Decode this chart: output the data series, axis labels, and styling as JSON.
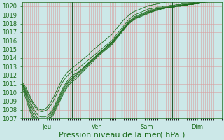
{
  "title": "",
  "xlabel": "Pression niveau de la mer( hPa )",
  "ylabel": "",
  "ylim": [
    1007,
    1020.5
  ],
  "xlim": [
    0,
    96
  ],
  "yticks": [
    1007,
    1008,
    1009,
    1010,
    1011,
    1012,
    1013,
    1014,
    1015,
    1016,
    1017,
    1018,
    1019,
    1020
  ],
  "xtick_positions": [
    12,
    36,
    60,
    84
  ],
  "xtick_labels": [
    "Jeu",
    "Ven",
    "Sam",
    "Dim"
  ],
  "vline_positions": [
    24,
    48,
    72
  ],
  "bg_color": "#cce8e8",
  "grid_color": "#d8a0a0",
  "line_color": "#1a6b1a",
  "vline_color": "#2d5a2d",
  "xlabel_fontsize": 8,
  "tick_fontsize": 6,
  "n_points": 97,
  "series": [
    [
      1011.0,
      1010.7,
      1010.3,
      1009.8,
      1009.3,
      1008.8,
      1008.4,
      1008.1,
      1007.9,
      1007.8,
      1007.8,
      1007.9,
      1008.0,
      1008.3,
      1008.6,
      1009.0,
      1009.5,
      1010.0,
      1010.5,
      1011.0,
      1011.4,
      1011.7,
      1012.0,
      1012.2,
      1012.4,
      1012.5,
      1012.6,
      1012.8,
      1013.0,
      1013.2,
      1013.4,
      1013.6,
      1013.8,
      1014.0,
      1014.2,
      1014.4,
      1014.6,
      1014.8,
      1015.0,
      1015.2,
      1015.4,
      1015.6,
      1015.8,
      1016.0,
      1016.3,
      1016.6,
      1016.9,
      1017.2,
      1017.5,
      1017.8,
      1018.1,
      1018.4,
      1018.6,
      1018.8,
      1019.0,
      1019.1,
      1019.2,
      1019.3,
      1019.4,
      1019.5,
      1019.6,
      1019.7,
      1019.7,
      1019.8,
      1019.8,
      1019.9,
      1019.9,
      1019.9,
      1020.0,
      1020.0,
      1020.0,
      1020.1,
      1020.1,
      1020.1,
      1020.2,
      1020.2,
      1020.2,
      1020.3,
      1020.3,
      1020.3,
      1020.4,
      1020.4,
      1020.4,
      1020.5,
      1020.5,
      1020.6,
      1020.6,
      1020.7,
      1020.7,
      1020.8,
      1020.8,
      1020.9,
      1020.9,
      1021.0,
      1021.0,
      1021.0,
      1021.1
    ],
    [
      1011.0,
      1010.6,
      1010.1,
      1009.5,
      1009.0,
      1008.4,
      1007.9,
      1007.6,
      1007.3,
      1007.2,
      1007.2,
      1007.2,
      1007.3,
      1007.5,
      1007.8,
      1008.2,
      1008.7,
      1009.2,
      1009.7,
      1010.2,
      1010.7,
      1011.1,
      1011.4,
      1011.7,
      1011.9,
      1012.1,
      1012.2,
      1012.4,
      1012.6,
      1012.8,
      1013.0,
      1013.2,
      1013.5,
      1013.7,
      1013.9,
      1014.1,
      1014.4,
      1014.6,
      1014.8,
      1015.0,
      1015.2,
      1015.4,
      1015.6,
      1015.8,
      1016.1,
      1016.4,
      1016.7,
      1017.0,
      1017.3,
      1017.6,
      1017.9,
      1018.2,
      1018.4,
      1018.6,
      1018.8,
      1018.9,
      1019.0,
      1019.1,
      1019.2,
      1019.3,
      1019.4,
      1019.5,
      1019.6,
      1019.6,
      1019.7,
      1019.7,
      1019.8,
      1019.8,
      1019.9,
      1019.9,
      1019.9,
      1020.0,
      1020.0,
      1020.0,
      1020.1,
      1020.1,
      1020.1,
      1020.2,
      1020.2,
      1020.2,
      1020.3,
      1020.3,
      1020.3,
      1020.4,
      1020.4,
      1020.5,
      1020.5,
      1020.6,
      1020.6,
      1020.7,
      1020.7,
      1020.8,
      1020.8,
      1020.9,
      1020.9,
      1021.0,
      1021.0
    ],
    [
      1011.0,
      1010.5,
      1009.9,
      1009.3,
      1008.7,
      1008.1,
      1007.6,
      1007.2,
      1007.0,
      1006.9,
      1006.9,
      1007.0,
      1007.1,
      1007.3,
      1007.6,
      1008.0,
      1008.5,
      1009.0,
      1009.5,
      1010.0,
      1010.5,
      1010.9,
      1011.2,
      1011.5,
      1011.7,
      1011.9,
      1012.1,
      1012.3,
      1012.5,
      1012.7,
      1013.0,
      1013.2,
      1013.4,
      1013.6,
      1013.9,
      1014.1,
      1014.3,
      1014.5,
      1014.7,
      1014.9,
      1015.2,
      1015.4,
      1015.6,
      1015.8,
      1016.0,
      1016.3,
      1016.6,
      1016.9,
      1017.2,
      1017.5,
      1017.8,
      1018.1,
      1018.3,
      1018.5,
      1018.7,
      1018.8,
      1018.9,
      1019.0,
      1019.1,
      1019.2,
      1019.3,
      1019.4,
      1019.5,
      1019.5,
      1019.6,
      1019.7,
      1019.7,
      1019.8,
      1019.8,
      1019.9,
      1019.9,
      1019.9,
      1020.0,
      1020.0,
      1020.0,
      1020.1,
      1020.1,
      1020.1,
      1020.2,
      1020.2,
      1020.2,
      1020.3,
      1020.3,
      1020.3,
      1020.4,
      1020.4,
      1020.5,
      1020.5,
      1020.6,
      1020.6,
      1020.7,
      1020.7,
      1020.8,
      1020.8,
      1020.9,
      1020.9,
      1021.0
    ],
    [
      1011.0,
      1010.4,
      1009.7,
      1009.0,
      1008.3,
      1007.7,
      1007.2,
      1006.9,
      1006.7,
      1006.6,
      1006.6,
      1006.7,
      1006.9,
      1007.1,
      1007.4,
      1007.8,
      1008.3,
      1008.8,
      1009.3,
      1009.8,
      1010.3,
      1010.7,
      1011.1,
      1011.4,
      1011.6,
      1011.8,
      1012.0,
      1012.2,
      1012.4,
      1012.6,
      1012.9,
      1013.1,
      1013.3,
      1013.6,
      1013.8,
      1014.0,
      1014.3,
      1014.5,
      1014.7,
      1014.9,
      1015.1,
      1015.3,
      1015.5,
      1015.7,
      1016.0,
      1016.3,
      1016.6,
      1016.9,
      1017.1,
      1017.4,
      1017.7,
      1018.0,
      1018.2,
      1018.4,
      1018.6,
      1018.7,
      1018.8,
      1018.9,
      1019.0,
      1019.1,
      1019.2,
      1019.3,
      1019.4,
      1019.5,
      1019.5,
      1019.6,
      1019.7,
      1019.7,
      1019.8,
      1019.8,
      1019.9,
      1019.9,
      1019.9,
      1020.0,
      1020.0,
      1020.0,
      1020.1,
      1020.1,
      1020.1,
      1020.2,
      1020.2,
      1020.2,
      1020.3,
      1020.3,
      1020.3,
      1020.4,
      1020.4,
      1020.5,
      1020.5,
      1020.6,
      1020.6,
      1020.7,
      1020.7,
      1020.8,
      1020.8,
      1020.9,
      1020.9
    ],
    [
      1010.8,
      1010.2,
      1009.5,
      1008.7,
      1008.0,
      1007.4,
      1006.9,
      1006.5,
      1006.3,
      1006.2,
      1006.3,
      1006.4,
      1006.6,
      1006.9,
      1007.2,
      1007.6,
      1008.1,
      1008.6,
      1009.1,
      1009.6,
      1010.1,
      1010.5,
      1010.9,
      1011.2,
      1011.4,
      1011.6,
      1011.8,
      1012.0,
      1012.2,
      1012.5,
      1012.7,
      1013.0,
      1013.2,
      1013.5,
      1013.7,
      1013.9,
      1014.2,
      1014.4,
      1014.6,
      1014.8,
      1015.0,
      1015.2,
      1015.4,
      1015.6,
      1015.9,
      1016.2,
      1016.5,
      1016.8,
      1017.1,
      1017.4,
      1017.7,
      1018.0,
      1018.2,
      1018.4,
      1018.6,
      1018.7,
      1018.8,
      1018.9,
      1019.0,
      1019.1,
      1019.2,
      1019.3,
      1019.4,
      1019.4,
      1019.5,
      1019.6,
      1019.6,
      1019.7,
      1019.7,
      1019.8,
      1019.8,
      1019.9,
      1019.9,
      1019.9,
      1020.0,
      1020.0,
      1020.0,
      1020.1,
      1020.1,
      1020.1,
      1020.2,
      1020.2,
      1020.2,
      1020.3,
      1020.3,
      1020.3,
      1020.4,
      1020.4,
      1020.5,
      1020.5,
      1020.6,
      1020.6,
      1020.7,
      1020.7,
      1020.8,
      1020.8,
      1020.9
    ],
    [
      1010.5,
      1009.9,
      1009.2,
      1008.4,
      1007.7,
      1007.1,
      1006.6,
      1006.3,
      1006.1,
      1006.0,
      1006.0,
      1006.1,
      1006.3,
      1006.6,
      1007.0,
      1007.4,
      1007.9,
      1008.4,
      1008.9,
      1009.4,
      1009.9,
      1010.3,
      1010.7,
      1011.0,
      1011.2,
      1011.4,
      1011.6,
      1011.8,
      1012.1,
      1012.3,
      1012.6,
      1012.8,
      1013.1,
      1013.3,
      1013.6,
      1013.8,
      1014.1,
      1014.3,
      1014.5,
      1014.7,
      1014.9,
      1015.1,
      1015.3,
      1015.5,
      1015.8,
      1016.1,
      1016.4,
      1016.7,
      1017.0,
      1017.3,
      1017.6,
      1017.9,
      1018.1,
      1018.3,
      1018.5,
      1018.6,
      1018.7,
      1018.8,
      1018.9,
      1019.0,
      1019.1,
      1019.2,
      1019.3,
      1019.4,
      1019.5,
      1019.5,
      1019.6,
      1019.7,
      1019.7,
      1019.8,
      1019.8,
      1019.9,
      1019.9,
      1019.9,
      1020.0,
      1020.0,
      1020.0,
      1020.1,
      1020.1,
      1020.1,
      1020.2,
      1020.2,
      1020.2,
      1020.3,
      1020.3,
      1020.3,
      1020.4,
      1020.4,
      1020.5,
      1020.5,
      1020.6,
      1020.6,
      1020.7,
      1020.7,
      1020.8,
      1020.8,
      1020.9
    ],
    [
      1011.2,
      1010.9,
      1010.5,
      1010.0,
      1009.5,
      1009.0,
      1008.6,
      1008.3,
      1008.1,
      1008.0,
      1008.0,
      1008.1,
      1008.3,
      1008.6,
      1009.0,
      1009.4,
      1009.9,
      1010.4,
      1010.9,
      1011.4,
      1011.8,
      1012.1,
      1012.4,
      1012.6,
      1012.8,
      1013.0,
      1013.2,
      1013.4,
      1013.6,
      1013.8,
      1014.0,
      1014.2,
      1014.4,
      1014.7,
      1014.9,
      1015.1,
      1015.3,
      1015.5,
      1015.7,
      1015.9,
      1016.1,
      1016.3,
      1016.5,
      1016.7,
      1017.0,
      1017.3,
      1017.6,
      1017.9,
      1018.2,
      1018.5,
      1018.7,
      1018.9,
      1019.1,
      1019.3,
      1019.4,
      1019.5,
      1019.6,
      1019.7,
      1019.8,
      1019.9,
      1020.0,
      1020.1,
      1020.1,
      1020.2,
      1020.2,
      1020.3,
      1020.3,
      1020.4,
      1020.4,
      1020.5,
      1020.5,
      1020.6,
      1020.6,
      1020.7,
      1020.7,
      1020.8,
      1020.8,
      1020.9,
      1020.9,
      1021.0,
      1021.0,
      1021.0,
      1021.1,
      1021.1,
      1021.1,
      1021.2,
      1021.2,
      1021.2,
      1021.3,
      1021.3,
      1021.3,
      1021.4,
      1021.4,
      1021.4,
      1021.5,
      1021.5,
      1021.5
    ]
  ]
}
